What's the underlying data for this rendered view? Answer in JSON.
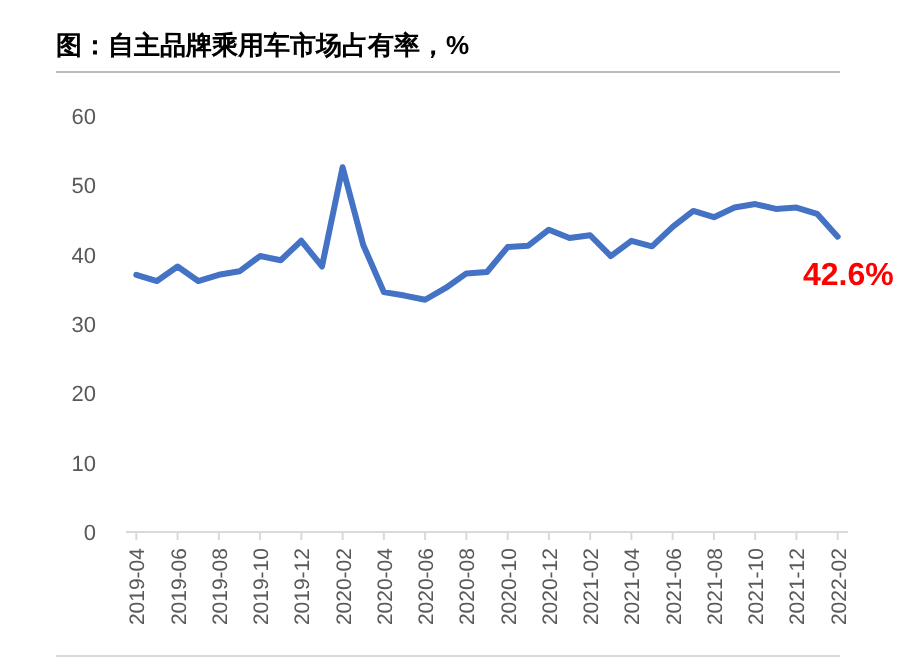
{
  "chart_data": {
    "type": "line",
    "title": "图：自主品牌乘用车市场占有率，%",
    "categories": [
      "2019-04",
      null,
      "2019-06",
      null,
      "2019-08",
      null,
      "2019-10",
      null,
      "2019-12",
      null,
      "2020-02",
      null,
      "2020-04",
      null,
      "2020-06",
      null,
      "2020-08",
      null,
      "2020-10",
      null,
      "2020-12",
      null,
      "2021-02",
      null,
      "2021-04",
      null,
      "2021-06",
      null,
      "2021-08",
      null,
      "2021-10",
      null,
      "2021-12",
      null,
      "2022-02"
    ],
    "series": [
      {
        "color": "#4472c4",
        "values": [
          37.1,
          36.2,
          38.3,
          36.2,
          37.1,
          37.6,
          39.8,
          39.2,
          42.0,
          38.3,
          52.6,
          41.4,
          34.6,
          34.1,
          33.5,
          35.2,
          37.3,
          37.5,
          41.1,
          41.3,
          43.6,
          42.4,
          42.8,
          39.8,
          42.0,
          41.2,
          44.0,
          46.3,
          45.4,
          46.8,
          47.3,
          46.6,
          46.8,
          45.9,
          42.6
        ]
      }
    ],
    "ylim": [
      0,
      60
    ],
    "yticks": [
      0,
      10,
      20,
      30,
      40,
      50,
      60
    ],
    "annotations": [
      {
        "text": "42.6%",
        "x": "2022-02",
        "y": 42.6
      }
    ]
  }
}
